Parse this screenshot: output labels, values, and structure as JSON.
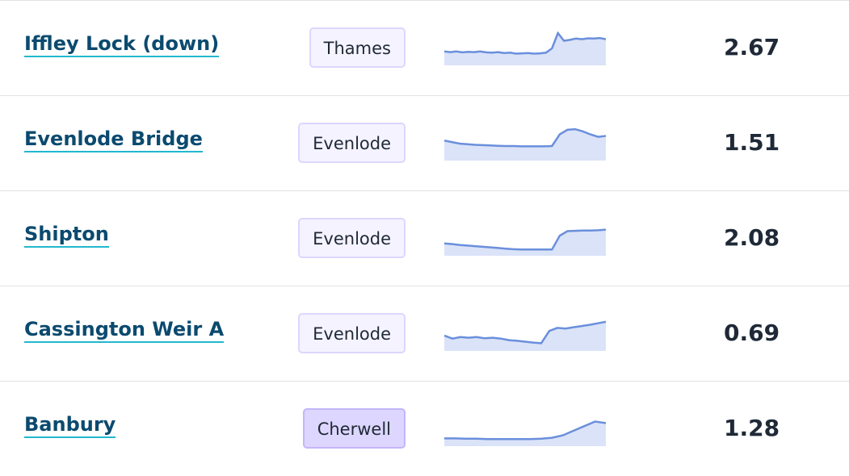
{
  "rows": [
    {
      "name": "Iffley Lock (down)",
      "river": "Thames",
      "badge_color": "#f5f3ff",
      "value": 2.67,
      "sparkline": [
        40,
        38,
        40,
        37,
        39,
        38,
        40,
        37,
        36,
        38,
        35,
        36,
        33,
        34,
        35,
        33,
        34,
        36,
        50,
        100,
        75,
        78,
        82,
        80,
        83,
        82,
        84,
        80
      ]
    },
    {
      "name": "Evenlode Bridge",
      "river": "Evenlode",
      "badge_color": "#f5f3ff",
      "value": 1.51,
      "sparkline": [
        60,
        55,
        50,
        48,
        46,
        45,
        44,
        43,
        42,
        42,
        41,
        41,
        41,
        41,
        42,
        80,
        95,
        97,
        90,
        80,
        72,
        75
      ]
    },
    {
      "name": "Shipton",
      "river": "Evenlode",
      "badge_color": "#f5f3ff",
      "value": 2.08,
      "sparkline": [
        35,
        33,
        30,
        28,
        26,
        24,
        22,
        20,
        18,
        16,
        15,
        15,
        15,
        15,
        15,
        60,
        75,
        76,
        77,
        77,
        78,
        80
      ]
    },
    {
      "name": "Cassington Weir A",
      "river": "Evenlode",
      "badge_color": "#f5f3ff",
      "value": 0.69,
      "sparkline": [
        45,
        35,
        40,
        38,
        40,
        36,
        38,
        35,
        30,
        28,
        25,
        22,
        20,
        60,
        70,
        68,
        72,
        76,
        80,
        85,
        90
      ]
    },
    {
      "name": "Banbury",
      "river": "Cherwell",
      "badge_color": "#ddd6fe",
      "value": 1.28,
      "sparkline": [
        20,
        20,
        19,
        19,
        18,
        18,
        18,
        18,
        18,
        19,
        22,
        30,
        45,
        60,
        75,
        70
      ]
    }
  ]
}
